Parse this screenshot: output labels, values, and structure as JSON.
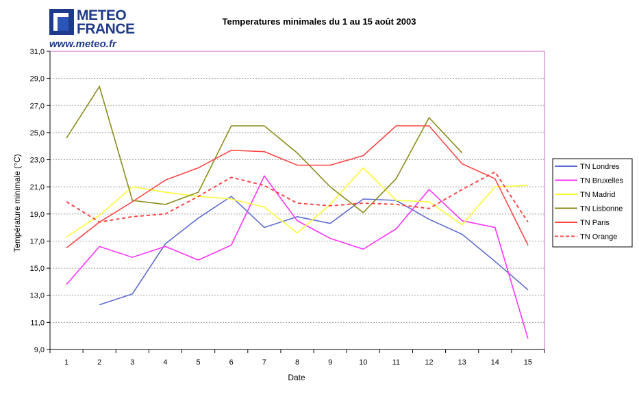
{
  "logo": {
    "line1": "METEO",
    "line2": "FRANCE",
    "url": "www.meteo.fr"
  },
  "chart_data": {
    "type": "line",
    "title": "Temperatures minimales du 1 au 15 août 2003",
    "xlabel": "Date",
    "ylabel": "Température minimale (°C)",
    "ylim": [
      9,
      31
    ],
    "yticks": [
      "9,0",
      "11,0",
      "13,0",
      "15,0",
      "17,0",
      "19,0",
      "21,0",
      "23,0",
      "25,0",
      "27,0",
      "29,0",
      "31,0"
    ],
    "x": [
      1,
      2,
      3,
      4,
      5,
      6,
      7,
      8,
      9,
      10,
      11,
      12,
      13,
      14,
      15
    ],
    "grid": true,
    "legend_position": "right",
    "series": [
      {
        "name": "TN Londres",
        "color": "#5b6ad0",
        "dash": "solid",
        "values": [
          null,
          12.3,
          13.1,
          16.8,
          18.7,
          20.3,
          18.0,
          18.8,
          18.3,
          20.1,
          20.0,
          18.6,
          17.5,
          15.5,
          13.4
        ]
      },
      {
        "name": "TN Bruxelles",
        "color": "#ff33ff",
        "dash": "solid",
        "values": [
          13.8,
          16.6,
          15.8,
          16.6,
          15.6,
          16.7,
          21.8,
          18.5,
          17.2,
          16.4,
          17.9,
          20.8,
          18.5,
          18.0,
          9.8
        ]
      },
      {
        "name": "TN Madrid",
        "color": "#ffff33",
        "dash": "solid",
        "values": [
          17.3,
          18.9,
          21.0,
          20.6,
          20.3,
          20.1,
          19.5,
          17.6,
          19.7,
          22.4,
          20.0,
          19.9,
          18.2,
          21.0,
          21.1
        ]
      },
      {
        "name": "TN Lisbonne",
        "color": "#8b8b1a",
        "dash": "solid",
        "values": [
          24.6,
          28.4,
          20.0,
          19.7,
          20.6,
          25.5,
          25.5,
          23.5,
          21.0,
          19.1,
          21.6,
          26.1,
          23.5,
          null,
          null
        ]
      },
      {
        "name": "TN Paris",
        "color": "#ff4444",
        "dash": "solid",
        "values": [
          16.5,
          18.4,
          19.9,
          21.5,
          22.4,
          23.7,
          23.6,
          22.6,
          22.6,
          23.3,
          25.5,
          25.5,
          22.7,
          21.6,
          16.7
        ]
      },
      {
        "name": "TN Orange",
        "color": "#ff4444",
        "dash": "dashed",
        "values": [
          19.9,
          18.4,
          18.8,
          19.0,
          20.3,
          21.7,
          21.1,
          19.8,
          19.6,
          19.8,
          19.7,
          19.4,
          20.8,
          22.1,
          18.4
        ]
      }
    ]
  }
}
